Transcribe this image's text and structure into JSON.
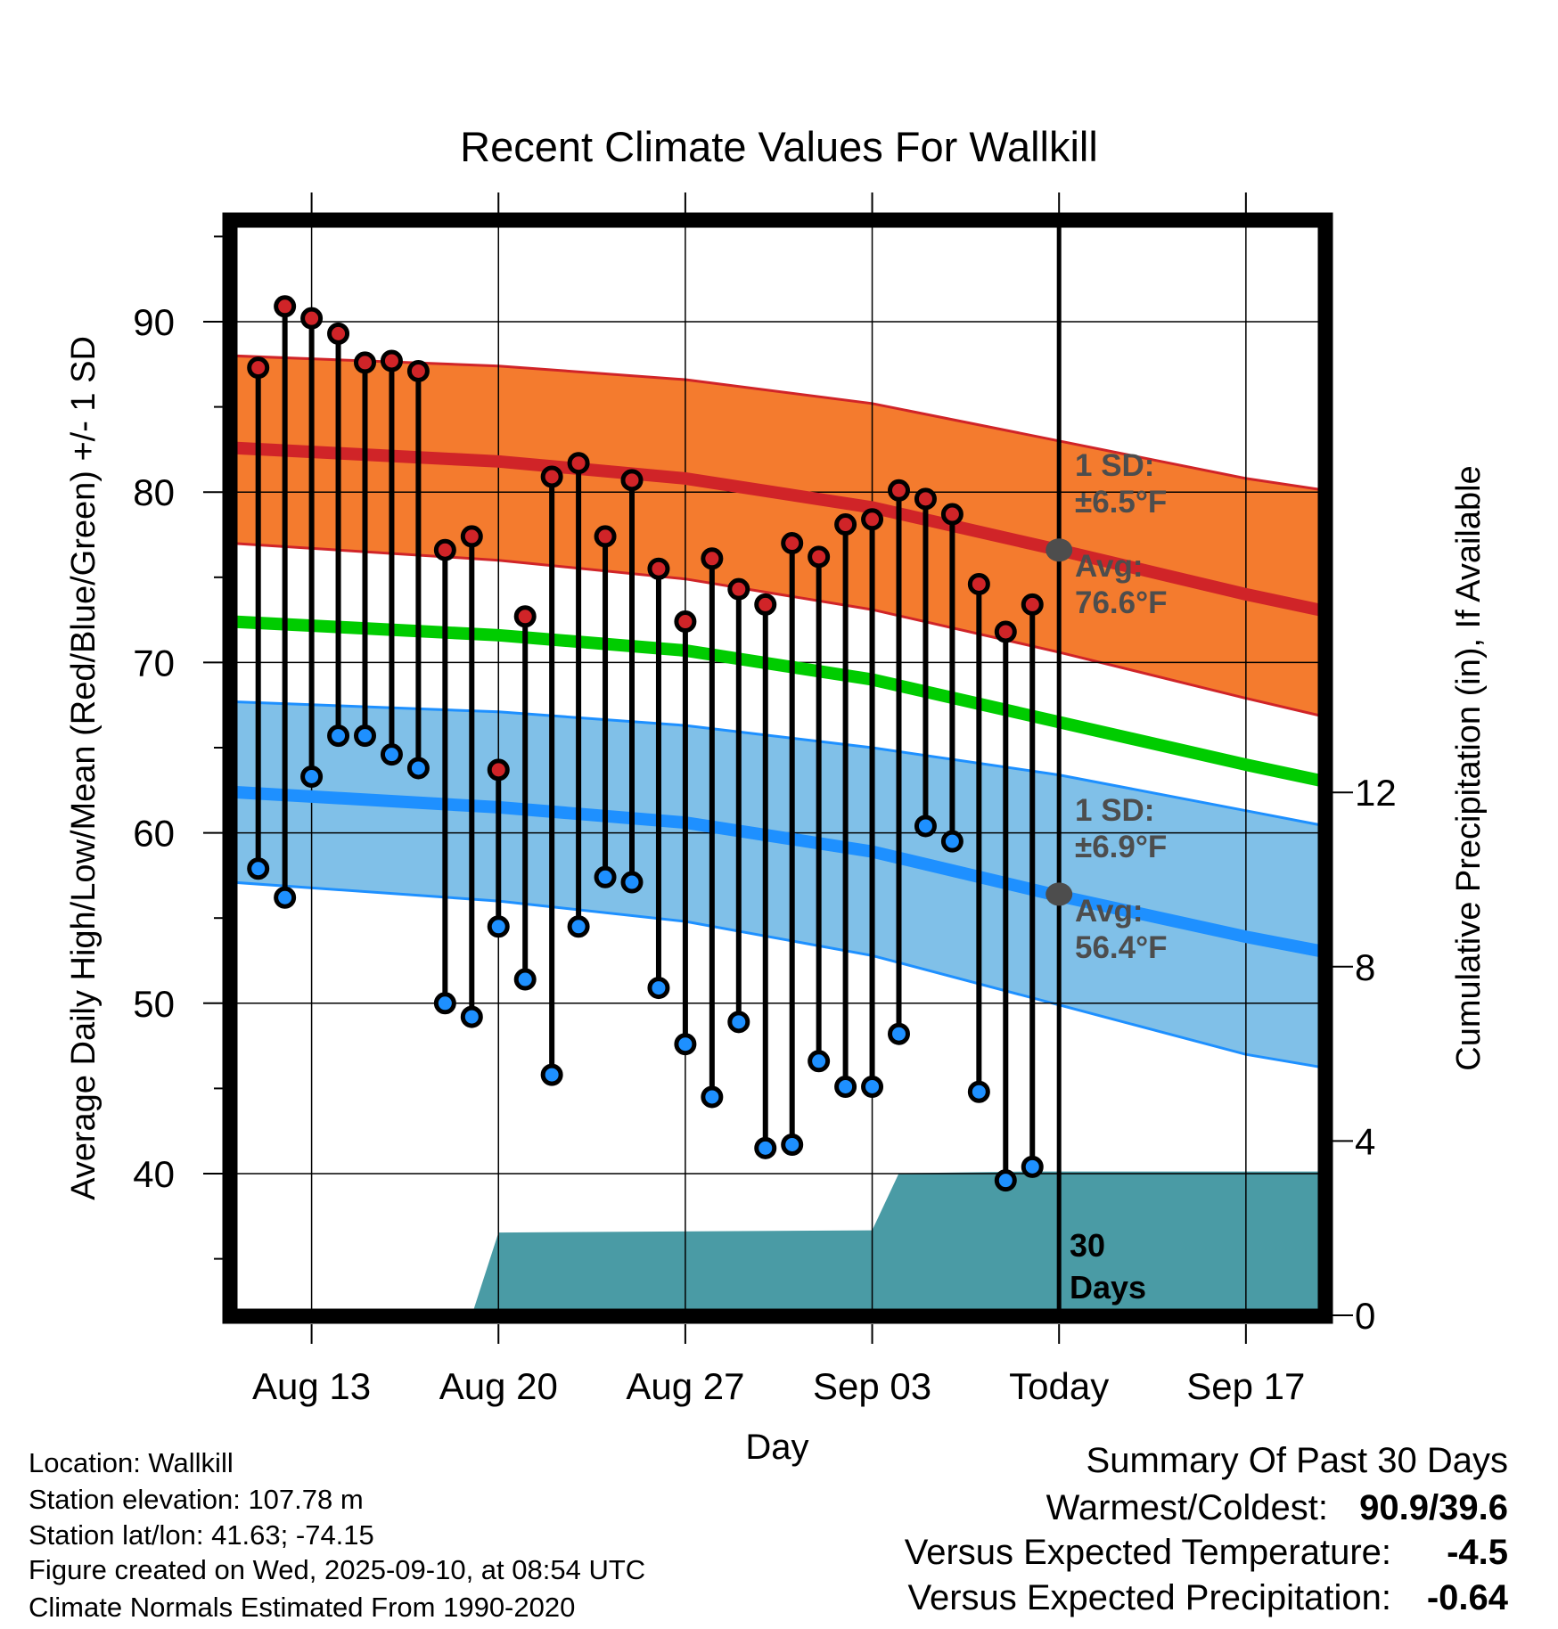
{
  "chart_data": {
    "type": "line",
    "title": "Recent Climate Values For Wallkill",
    "xlabel": "Day",
    "ylabel": "Average Daily High/Low/Mean (Red/Blue/Green) +/- 1 SD",
    "y2label": "Cumulative Precipitation (in), If Available",
    "ylim": [
      32.07,
      95.5
    ],
    "y2lim": [
      0,
      17.7
    ],
    "xlim": [
      "Aug 10.3",
      "Sep 19.7"
    ],
    "grid": true,
    "yticks": [
      "40",
      "50",
      "60",
      "70",
      "80",
      "90"
    ],
    "y2ticks": [
      "0",
      "4",
      "8",
      "12"
    ],
    "xticks": [
      {
        "label": "Aug 13",
        "date": "Aug 13"
      },
      {
        "label": "Aug 20",
        "date": "Aug 20"
      },
      {
        "label": "Aug 27",
        "date": "Aug 27"
      },
      {
        "label": "Sep 03",
        "date": "Sep 03"
      },
      {
        "label": "Today",
        "date": "Sep 10"
      },
      {
        "label": "Sep 17",
        "date": "Sep 17"
      }
    ],
    "dates": [
      "Aug 11",
      "Aug 12",
      "Aug 13",
      "Aug 14",
      "Aug 15",
      "Aug 16",
      "Aug 17",
      "Aug 18",
      "Aug 19",
      "Aug 20",
      "Aug 21",
      "Aug 22",
      "Aug 23",
      "Aug 24",
      "Aug 25",
      "Aug 26",
      "Aug 27",
      "Aug 28",
      "Aug 29",
      "Aug 30",
      "Aug 31",
      "Sep 01",
      "Sep 02",
      "Sep 03",
      "Sep 04",
      "Sep 05",
      "Sep 06",
      "Sep 07",
      "Sep 08",
      "Sep 09"
    ],
    "series": [
      {
        "name": "Daily High",
        "color": "#d02428",
        "values": [
          87.3,
          90.9,
          90.2,
          89.3,
          87.6,
          87.7,
          87.1,
          76.6,
          77.4,
          63.7,
          72.7,
          80.9,
          81.7,
          77.4,
          80.7,
          75.5,
          72.4,
          76.1,
          74.3,
          73.4,
          77.0,
          76.2,
          78.1,
          78.4,
          80.1,
          79.6,
          78.7,
          74.6,
          71.8,
          73.4
        ]
      },
      {
        "name": "Daily Low",
        "color": "#1e90ff",
        "values": [
          57.9,
          56.2,
          63.3,
          65.7,
          65.7,
          64.6,
          63.8,
          50.0,
          49.2,
          54.5,
          51.4,
          45.8,
          54.5,
          57.4,
          57.1,
          50.9,
          47.6,
          44.5,
          48.9,
          41.5,
          41.7,
          46.6,
          45.1,
          45.1,
          48.2,
          60.4,
          59.5,
          44.8,
          39.6,
          40.4
        ]
      }
    ],
    "normals": {
      "dates": [
        "Aug 10",
        "Aug 20",
        "Aug 27",
        "Sep 03",
        "Sep 10",
        "Sep 17",
        "Sep 20"
      ],
      "high_avg": [
        82.6,
        81.8,
        80.8,
        79.1,
        76.6,
        74.0,
        73.0
      ],
      "high_upper": [
        88.0,
        87.4,
        86.6,
        85.2,
        83.0,
        80.8,
        80.1
      ],
      "high_lower": [
        77.0,
        76.0,
        74.9,
        73.1,
        70.6,
        67.9,
        66.8
      ],
      "mean": [
        72.4,
        71.6,
        70.7,
        69.0,
        66.5,
        64.0,
        63.0
      ],
      "low_avg": [
        62.4,
        61.5,
        60.6,
        58.9,
        56.3,
        53.9,
        53.0
      ],
      "low_upper": [
        67.7,
        67.1,
        66.3,
        65.0,
        63.4,
        61.3,
        60.4
      ],
      "low_lower": [
        57.1,
        56.0,
        54.8,
        52.8,
        49.9,
        47.0,
        46.2
      ]
    },
    "precip": {
      "dates": [
        "Aug 19",
        "Aug 20",
        "Sep 03",
        "Sep 04",
        "Sep 09",
        "Sep 20"
      ],
      "values": [
        0,
        1.9,
        1.95,
        3.26,
        3.3,
        3.3
      ]
    },
    "today": "Sep 10",
    "annotations": {
      "high_sd_line1": "1 SD:",
      "high_sd_line2": "±6.5°F",
      "high_avg_line1": "Avg:",
      "high_avg_line2": "76.6°F",
      "low_sd_line1": "1 SD:",
      "low_sd_line2": "±6.9°F",
      "low_avg_line1": "Avg:",
      "low_avg_line2": "56.4°F",
      "precip_line1": "30",
      "precip_line2": "Days",
      "today_high_avg": 76.6,
      "today_low_avg": 56.4
    },
    "colors": {
      "high_band": "#f47b2e",
      "high_line": "#d02428",
      "mean_line": "#00cc00",
      "low_band": "#80c0e8",
      "low_line": "#1e90ff",
      "precip": "#4a9ba5",
      "annot": "#4d4d4d"
    }
  },
  "footer": {
    "location": "Location: Wallkill",
    "elevation": "Station elevation: 107.78 m",
    "latlon": "Station lat/lon: 41.63; -74.15",
    "created": "Figure created on Wed, 2025-09-10, at 08:54 UTC",
    "normals": "Climate Normals Estimated From 1990-2020"
  },
  "summary": {
    "title": "Summary Of Past 30 Days",
    "warmest_label": "Warmest/Coldest:",
    "warmest_value": "90.9/39.6",
    "temp_label": "Versus Expected Temperature:",
    "temp_value": "-4.5",
    "temp_color": "#2196f3",
    "precip_label": "Versus Expected Precipitation:",
    "precip_value": "-0.64",
    "precip_color": "#a0522d"
  }
}
